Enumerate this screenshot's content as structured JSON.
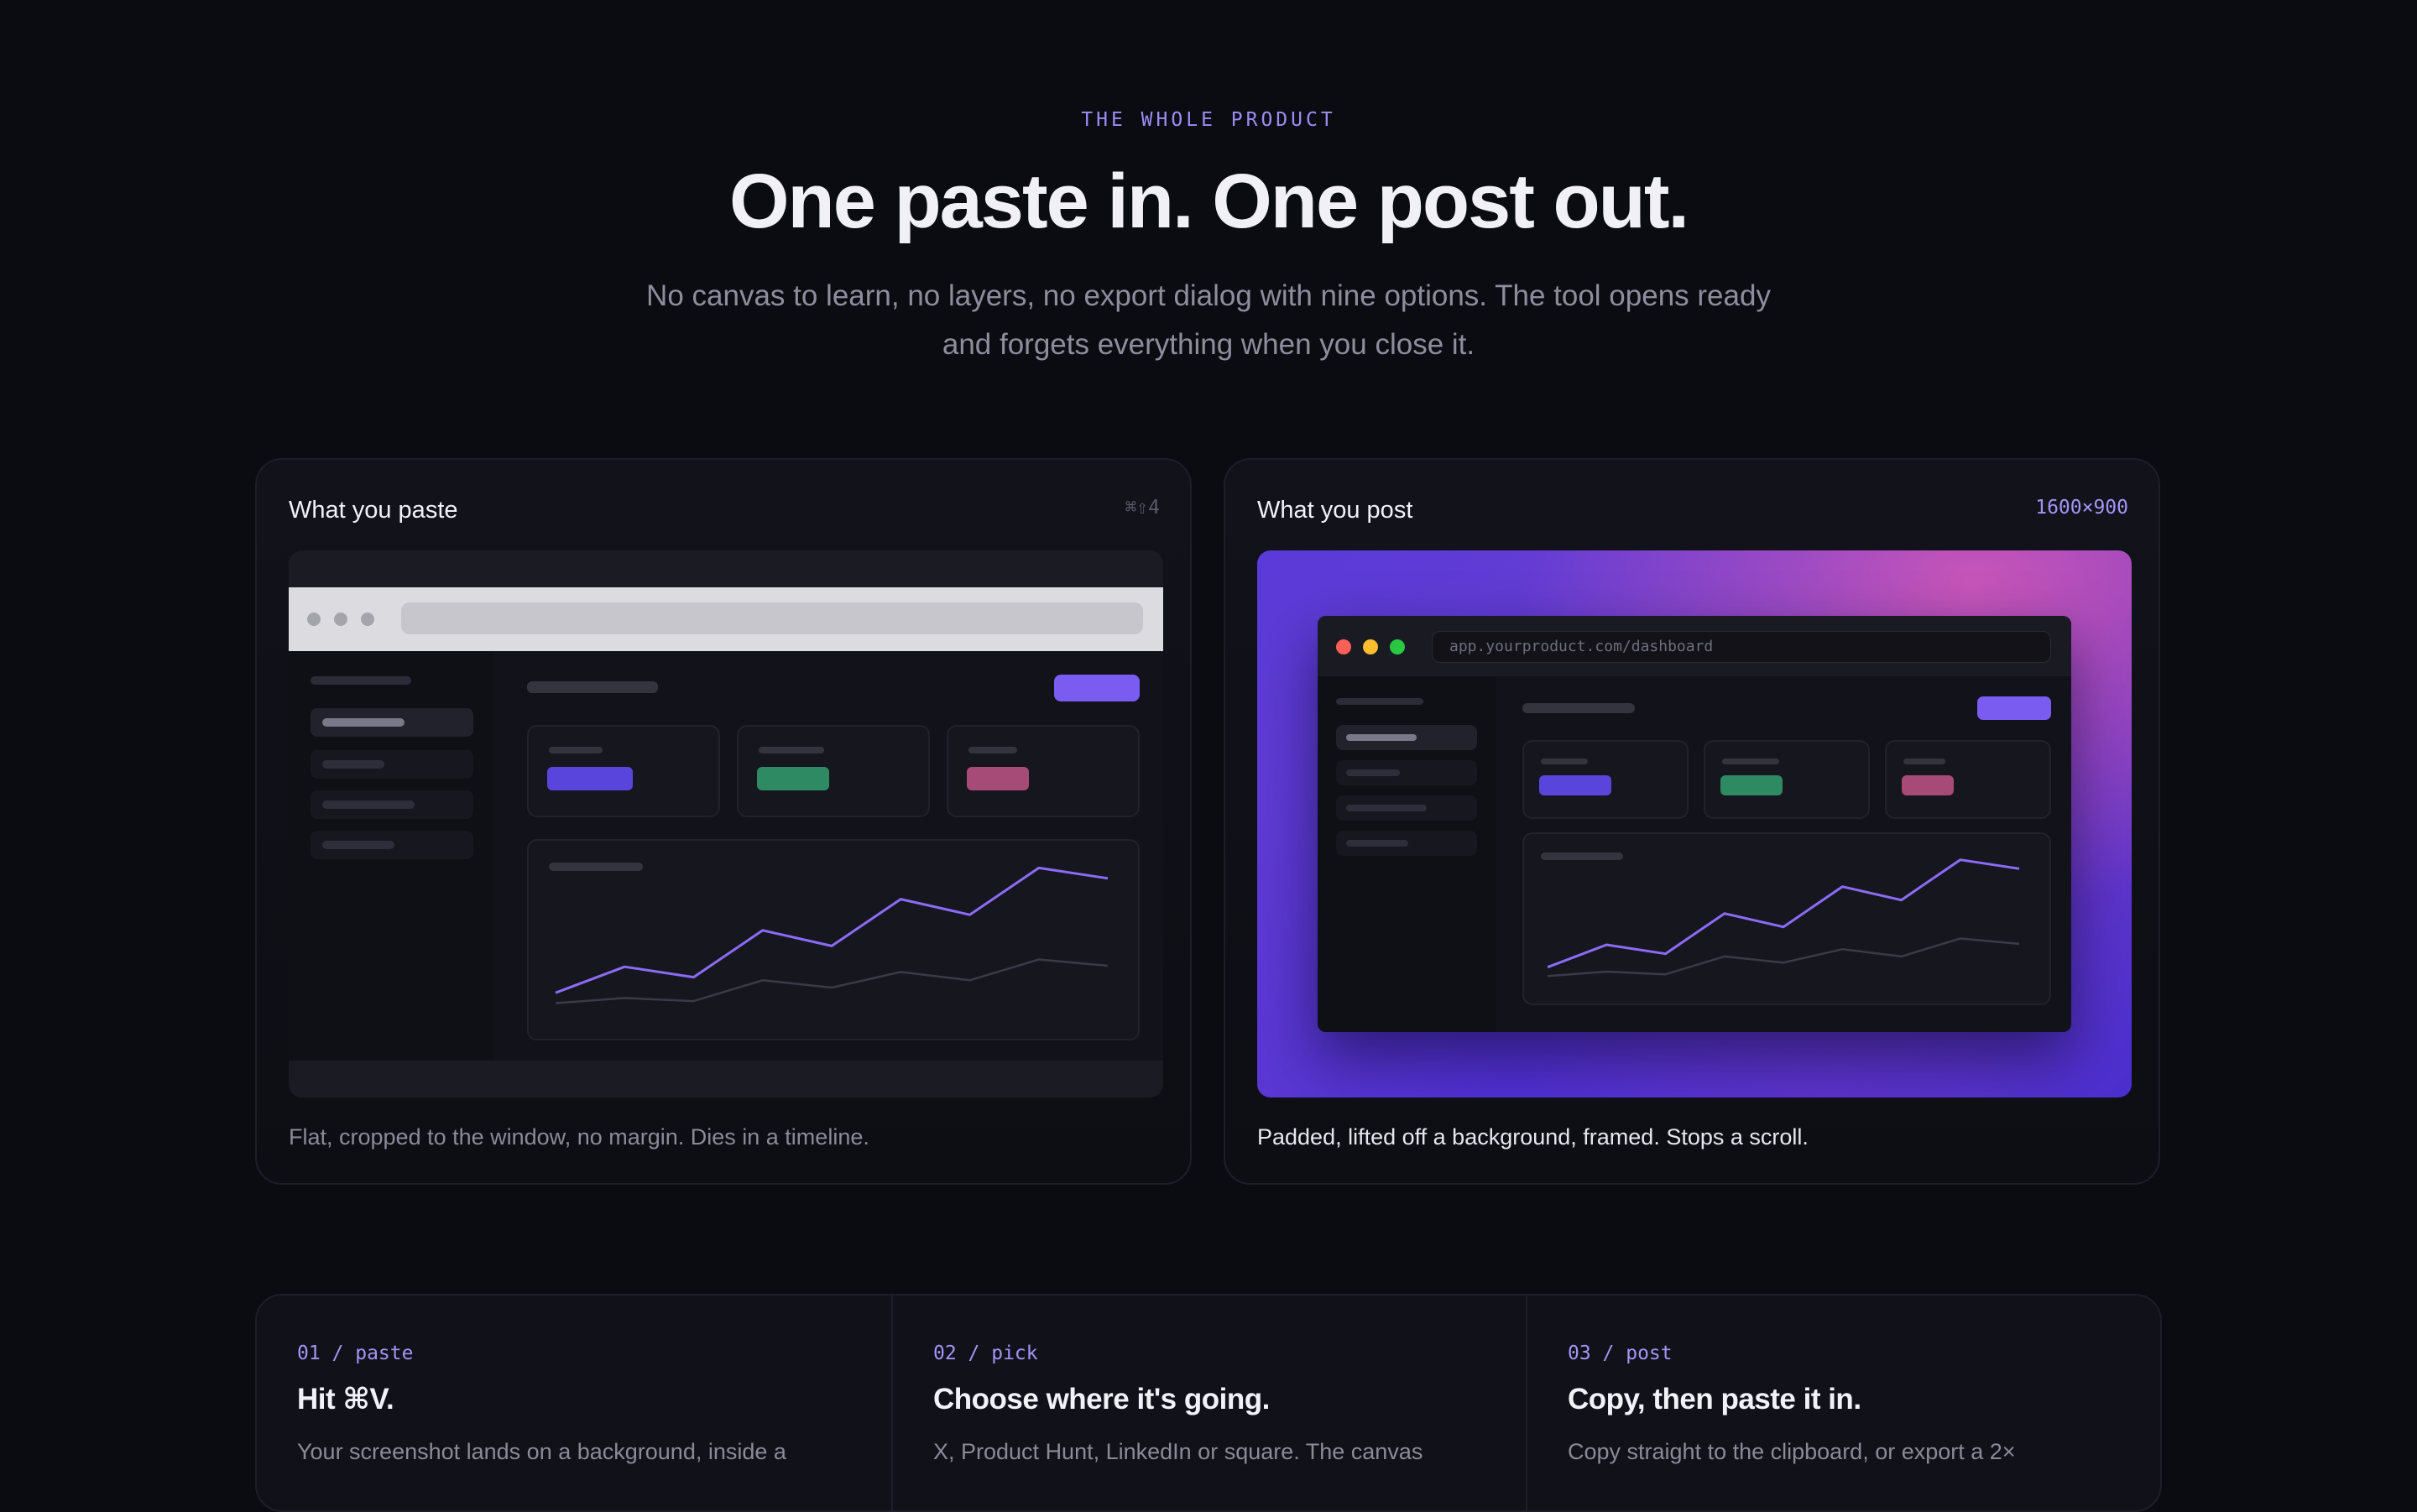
{
  "hero": {
    "eyebrow": "THE WHOLE PRODUCT",
    "title": "One paste in. One post out.",
    "subtitle": "No canvas to learn, no layers, no export dialog with nine options. The tool opens ready and forgets everything when you close it."
  },
  "cards": {
    "paste": {
      "title": "What you paste",
      "shortcut": "⌘⇧4",
      "caption": "Flat, cropped to the window, no margin. Dies in a timeline."
    },
    "post": {
      "title": "What you post",
      "size": "1600×900",
      "url": "app.yourproduct.com/dashboard",
      "caption": "Padded, lifted off a background, framed. Stops a scroll."
    }
  },
  "mock_chart": {
    "type": "line",
    "x": [
      0,
      1,
      2,
      3,
      4,
      5,
      6,
      7,
      8
    ],
    "series": [
      {
        "values": [
          2,
          4.5,
          3.5,
          8,
          6.5,
          11,
          9.5,
          14,
          13
        ]
      },
      {
        "values": [
          1,
          1.5,
          1.2,
          3.2,
          2.5,
          4,
          3.2,
          5.2,
          4.6
        ]
      }
    ],
    "ylim": [
      0,
      15
    ]
  },
  "colors": {
    "accent": "#7a5cf0",
    "green": "#2e8a62",
    "pink": "#a64a78",
    "line_primary": "#8b6cf6",
    "line_secondary": "#3a3a48"
  },
  "steps": [
    {
      "num": "01 / paste",
      "title": "Hit ⌘V.",
      "body": "Your screenshot lands on a background, inside a"
    },
    {
      "num": "02 / pick",
      "title": "Choose where it's going.",
      "body": "X, Product Hunt, LinkedIn or square. The canvas"
    },
    {
      "num": "03 / post",
      "title": "Copy, then paste it in.",
      "body": "Copy straight to the clipboard, or export a 2×"
    }
  ]
}
